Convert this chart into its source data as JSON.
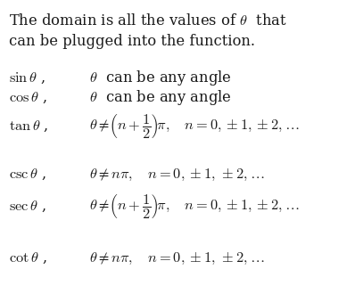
{
  "background_color": "#ffffff",
  "text_color": "#1a1a1a",
  "title_line1": "The domain is all the values of $\\theta$  that",
  "title_line2": "can be plugged into the function.",
  "rows": [
    {
      "func": "$\\sin\\theta$ ,",
      "domain": "$\\theta$  can be any angle",
      "tall": false
    },
    {
      "func": "$\\cos\\theta$ ,",
      "domain": "$\\theta$  can be any angle",
      "tall": false
    },
    {
      "func": "$\\tan\\theta$ ,",
      "domain": "$\\theta \\neq \\!\\left(n+\\dfrac{1}{2}\\right)\\!\\pi,\\quad n=0,\\pm1,\\pm2,\\ldots$",
      "tall": true
    },
    {
      "func": "$\\csc\\theta$ ,",
      "domain": "$\\theta \\neq n\\pi,\\quad n=0,\\pm1,\\, \\pm2,\\ldots$",
      "tall": false
    },
    {
      "func": "$\\sec\\theta$ ,",
      "domain": "$\\theta \\neq \\!\\left(n+\\dfrac{1}{2}\\right)\\!\\pi,\\quad n=0,\\pm1,\\pm2,\\ldots$",
      "tall": true
    },
    {
      "func": "$\\cot\\theta$ ,",
      "domain": "$\\theta \\neq n\\pi,\\quad n=0,\\pm1,\\, \\pm2,\\ldots$",
      "tall": false
    }
  ],
  "title_fontsize": 11.8,
  "row_fontsize": 11.8,
  "fig_width": 3.98,
  "fig_height": 3.39,
  "dpi": 100
}
